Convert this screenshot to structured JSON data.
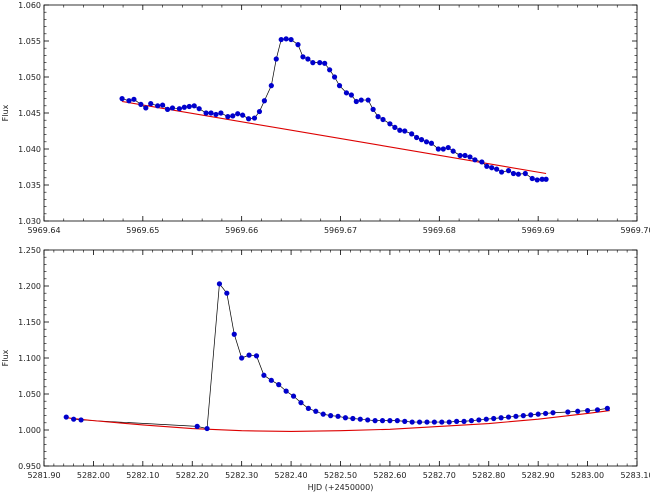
{
  "chart_data": [
    {
      "type": "scatter",
      "xlabel": "",
      "ylabel": "Flux",
      "xlim": [
        5969.64,
        5969.7
      ],
      "ylim": [
        1.03,
        1.06
      ],
      "xticks": [
        "5969.64",
        "5969.65",
        "5969.66",
        "5969.67",
        "5969.68",
        "5969.69",
        "5969.70"
      ],
      "xtick_values": [
        5969.64,
        5969.65,
        5969.66,
        5969.67,
        5969.68,
        5969.69,
        5969.7
      ],
      "yticks": [
        "1.030",
        "1.035",
        "1.040",
        "1.045",
        "1.050",
        "1.055",
        "1.060"
      ],
      "ytick_values": [
        1.03,
        1.035,
        1.04,
        1.045,
        1.05,
        1.055,
        1.06
      ],
      "series": [
        {
          "role": "observed",
          "color": "#0000cc",
          "x": [
            5969.6479,
            5969.6486,
            5969.6491,
            5969.6498,
            5969.6503,
            5969.6508,
            5969.6515,
            5969.652,
            5969.6525,
            5969.653,
            5969.6537,
            5969.6542,
            5969.6547,
            5969.6552,
            5969.6557,
            5969.6564,
            5969.6569,
            5969.6574,
            5969.6579,
            5969.6586,
            5969.6591,
            5969.6596,
            5969.6601,
            5969.6607,
            5969.6613,
            5969.6618,
            5969.6623,
            5969.663,
            5969.6635,
            5969.664,
            5969.6645,
            5969.665,
            5969.6657,
            5969.6662,
            5969.6667,
            5969.6672,
            5969.6679,
            5969.6684,
            5969.6689,
            5969.6694,
            5969.6699,
            5969.6706,
            5969.6711,
            5969.6716,
            5969.6721,
            5969.6728,
            5969.6733,
            5969.6738,
            5969.6743,
            5969.675,
            5969.6755,
            5969.676,
            5969.6765,
            5969.6772,
            5969.6777,
            5969.6782,
            5969.6787,
            5969.6792,
            5969.6799,
            5969.6804,
            5969.6809,
            5969.6814,
            5969.6821,
            5969.6826,
            5969.6831,
            5969.6836,
            5969.6843,
            5969.6848,
            5969.6853,
            5969.6858,
            5969.6863,
            5969.687,
            5969.6875,
            5969.688,
            5969.6887,
            5969.6894,
            5969.6899,
            5969.6904,
            5969.6908
          ],
          "y": [
            1.047,
            1.0467,
            1.0469,
            1.0462,
            1.0457,
            1.0463,
            1.046,
            1.0461,
            1.0455,
            1.0457,
            1.0456,
            1.0458,
            1.0459,
            1.046,
            1.0456,
            1.045,
            1.045,
            1.0448,
            1.045,
            1.0445,
            1.0446,
            1.0449,
            1.0447,
            1.0442,
            1.0443,
            1.0452,
            1.0467,
            1.0488,
            1.0525,
            1.0552,
            1.0553,
            1.0552,
            1.0545,
            1.0528,
            1.0525,
            1.052,
            1.052,
            1.0519,
            1.051,
            1.05,
            1.0488,
            1.0478,
            1.0475,
            1.0466,
            1.0468,
            1.0468,
            1.0455,
            1.0445,
            1.0441,
            1.0435,
            1.043,
            1.0426,
            1.0425,
            1.0421,
            1.0416,
            1.0413,
            1.041,
            1.0408,
            1.04,
            1.04,
            1.0402,
            1.0397,
            1.0391,
            1.0391,
            1.0389,
            1.0385,
            1.0382,
            1.0376,
            1.0374,
            1.0372,
            1.0368,
            1.037,
            1.0366,
            1.0365,
            1.0366,
            1.0359,
            1.0357,
            1.0358,
            1.0358
          ]
        },
        {
          "role": "baseline-fit",
          "color": "#dd0000",
          "x": [
            5969.6479,
            5969.6908
          ],
          "y": [
            1.0466,
            1.0366
          ]
        }
      ]
    },
    {
      "type": "scatter",
      "xlabel": "HJD (+2450000)",
      "ylabel": "Flux",
      "xlim": [
        5281.9,
        5283.1
      ],
      "ylim": [
        0.95,
        1.25
      ],
      "xticks": [
        "5281.90",
        "5282.00",
        "5282.10",
        "5282.20",
        "5282.30",
        "5282.40",
        "5282.50",
        "5282.60",
        "5282.70",
        "5282.80",
        "5282.90",
        "5283.00",
        "5283.10"
      ],
      "xtick_values": [
        5281.9,
        5282.0,
        5282.1,
        5282.2,
        5282.3,
        5282.4,
        5282.5,
        5282.6,
        5282.7,
        5282.8,
        5282.9,
        5283.0,
        5283.1
      ],
      "yticks": [
        "0.950",
        "1.000",
        "1.050",
        "1.100",
        "1.150",
        "1.200",
        "1.250"
      ],
      "ytick_values": [
        0.95,
        1.0,
        1.05,
        1.1,
        1.15,
        1.2,
        1.25
      ],
      "series": [
        {
          "role": "observed",
          "color": "#0000cc",
          "x": [
            5281.945,
            5281.96,
            5281.975,
            5282.21,
            5282.23,
            5282.255,
            5282.27,
            5282.285,
            5282.3,
            5282.315,
            5282.33,
            5282.345,
            5282.36,
            5282.375,
            5282.39,
            5282.405,
            5282.42,
            5282.435,
            5282.45,
            5282.465,
            5282.48,
            5282.495,
            5282.51,
            5282.525,
            5282.54,
            5282.555,
            5282.57,
            5282.585,
            5282.6,
            5282.615,
            5282.63,
            5282.645,
            5282.66,
            5282.675,
            5282.69,
            5282.705,
            5282.72,
            5282.735,
            5282.75,
            5282.765,
            5282.78,
            5282.795,
            5282.81,
            5282.825,
            5282.84,
            5282.855,
            5282.87,
            5282.885,
            5282.9,
            5282.915,
            5282.93,
            5282.96,
            5282.98,
            5283.0,
            5283.02,
            5283.04
          ],
          "y": [
            1.018,
            1.015,
            1.014,
            1.005,
            1.002,
            1.203,
            1.19,
            1.133,
            1.1,
            1.104,
            1.103,
            1.076,
            1.069,
            1.063,
            1.054,
            1.047,
            1.038,
            1.03,
            1.026,
            1.022,
            1.02,
            1.019,
            1.017,
            1.016,
            1.015,
            1.014,
            1.013,
            1.013,
            1.013,
            1.013,
            1.012,
            1.011,
            1.011,
            1.011,
            1.011,
            1.011,
            1.011,
            1.012,
            1.012,
            1.013,
            1.014,
            1.015,
            1.016,
            1.017,
            1.018,
            1.019,
            1.02,
            1.021,
            1.022,
            1.023,
            1.024,
            1.025,
            1.026,
            1.027,
            1.028,
            1.03
          ]
        },
        {
          "role": "baseline-fit",
          "color": "#dd0000",
          "x": [
            5281.945,
            5282.0,
            5282.1,
            5282.2,
            5282.3,
            5282.4,
            5282.5,
            5282.6,
            5282.7,
            5282.8,
            5282.9,
            5283.0,
            5283.045
          ],
          "y": [
            1.017,
            1.013,
            1.007,
            1.002,
            0.999,
            0.998,
            0.999,
            1.001,
            1.005,
            1.009,
            1.015,
            1.023,
            1.027
          ]
        }
      ]
    }
  ]
}
